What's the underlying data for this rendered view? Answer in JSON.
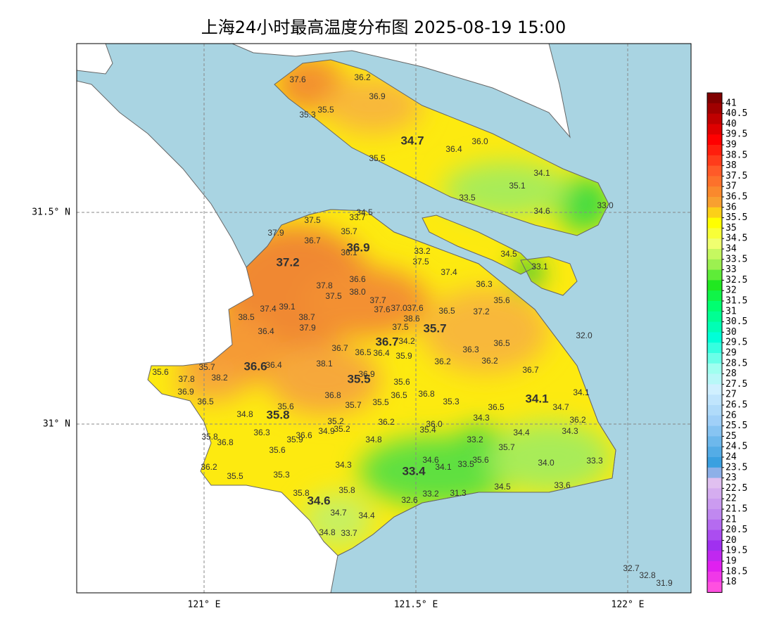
{
  "title": "上海24小时最高温度分布图 2025-08-19 15:00",
  "x_ticks": [
    "121° E",
    "121.5° E",
    "122° E"
  ],
  "y_ticks": [
    "31.5° N",
    "31° N"
  ],
  "colorbar": [
    41,
    40.5,
    40,
    39.5,
    39,
    38.5,
    38,
    37.5,
    37,
    36.5,
    36,
    35.5,
    35,
    34.5,
    34,
    33.5,
    33,
    32.5,
    32,
    31.5,
    31,
    30.5,
    30,
    29.5,
    29,
    28.5,
    28,
    27.5,
    27,
    26.5,
    26,
    25.5,
    25,
    24.5,
    24,
    23.5,
    23,
    22.5,
    22,
    21.5,
    21,
    20.5,
    20,
    19.5,
    19,
    18.5,
    18
  ],
  "stations": [
    "37.6",
    "36.2",
    "36.9",
    "35.5",
    "35.3",
    "34.7",
    "36.4",
    "36.0",
    "35.5",
    "34.1",
    "35.1",
    "33.5",
    "34.6",
    "33.0",
    "34.5",
    "33.7",
    "37.5",
    "35.7",
    "37.9",
    "36.7",
    "36.9",
    "36.1",
    "33.2",
    "37.5",
    "34.5",
    "37.2",
    "33.1",
    "37.4",
    "36.6",
    "37.8",
    "38.0",
    "37.5",
    "36.3",
    "37.7",
    "35.6",
    "37.4",
    "39.1",
    "37.6",
    "37.0",
    "37.6",
    "36.5",
    "37.2",
    "38.5",
    "38.7",
    "38.6",
    "37.9",
    "37.5",
    "35.7",
    "36.4",
    "32.0",
    "36.7",
    "34.2",
    "36.7",
    "36.5",
    "36.4",
    "35.9",
    "36.3",
    "36.5",
    "38.1",
    "35.7",
    "36.6",
    "36.4",
    "36.2",
    "36.2",
    "35.6",
    "37.8",
    "38.2",
    "36.9",
    "36.7",
    "35.5",
    "35.6",
    "36.9",
    "36.8",
    "36.5",
    "36.8",
    "34.1",
    "34.1",
    "35.3",
    "36.5",
    "35.7",
    "35.5",
    "36.5",
    "34.7",
    "35.6",
    "34.8",
    "35.8",
    "34.3",
    "36.2",
    "35.2",
    "36.2",
    "36.0",
    "36.3",
    "34.9",
    "35.2",
    "35.4",
    "34.4",
    "34.3",
    "35.8",
    "36.6",
    "35.9",
    "36.8",
    "34.8",
    "33.2",
    "35.7",
    "35.6",
    "34.6",
    "35.6",
    "34.3",
    "34.1",
    "33.5",
    "34.0",
    "33.3",
    "36.2",
    "33.4",
    "35.3",
    "35.5",
    "35.8",
    "35.8",
    "34.5",
    "33.6",
    "33.2",
    "31.3",
    "34.6",
    "32.6",
    "34.7",
    "34.4",
    "34.8",
    "33.7",
    "32.7",
    "32.8",
    "31.9"
  ]
}
